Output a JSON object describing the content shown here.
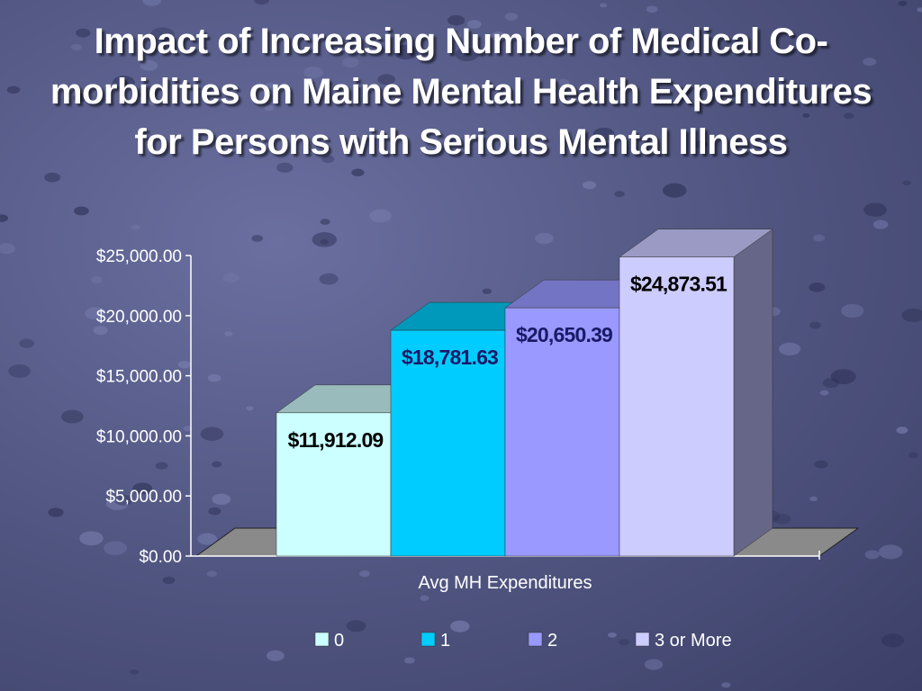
{
  "slide": {
    "title": "Impact of Increasing Number of Medical Co-morbidities on Maine Mental Health Expenditures for Persons with Serious Mental Illness"
  },
  "chart_data": {
    "type": "bar",
    "title": "Impact of Increasing Number of Medical Co-morbidities on Maine Mental Health Expenditures for Persons with Serious Mental Illness",
    "categories": [
      "Avg MH Expenditures"
    ],
    "xlabel": "Avg MH Expenditures",
    "ylabel": "",
    "ylim": [
      0,
      25000
    ],
    "yticks": [
      0,
      5000,
      10000,
      15000,
      20000,
      25000
    ],
    "ytick_labels": [
      "$0.00",
      "$5,000.00",
      "$10,000.00",
      "$15,000.00",
      "$20,000.00",
      "$25,000.00"
    ],
    "series": [
      {
        "name": "0",
        "values": [
          11912.09
        ],
        "label": "$11,912.09",
        "color": "#ccffff",
        "top_color": "#99bbbb",
        "side_color": "#aadddd",
        "label_color": "#000000"
      },
      {
        "name": "1",
        "values": [
          18781.63
        ],
        "label": "$18,781.63",
        "color": "#00ccff",
        "top_color": "#0099bb",
        "side_color": "#00a8d4",
        "label_color": "#1a1a66"
      },
      {
        "name": "2",
        "values": [
          20650.39
        ],
        "label": "$20,650.39",
        "color": "#9999ff",
        "top_color": "#7474c4",
        "side_color": "#8080dd",
        "label_color": "#1a1a66"
      },
      {
        "name": "3 or More",
        "values": [
          24873.51
        ],
        "label": "$24,873.51",
        "color": "#ccccff",
        "top_color": "#9a9ac4",
        "side_color": "#666688",
        "label_color": "#000000"
      }
    ],
    "grid": false,
    "legend": "bottom",
    "floor_color": "#8a8a8a",
    "axis_color": "#ffffff",
    "text_color": "#ffffff"
  }
}
